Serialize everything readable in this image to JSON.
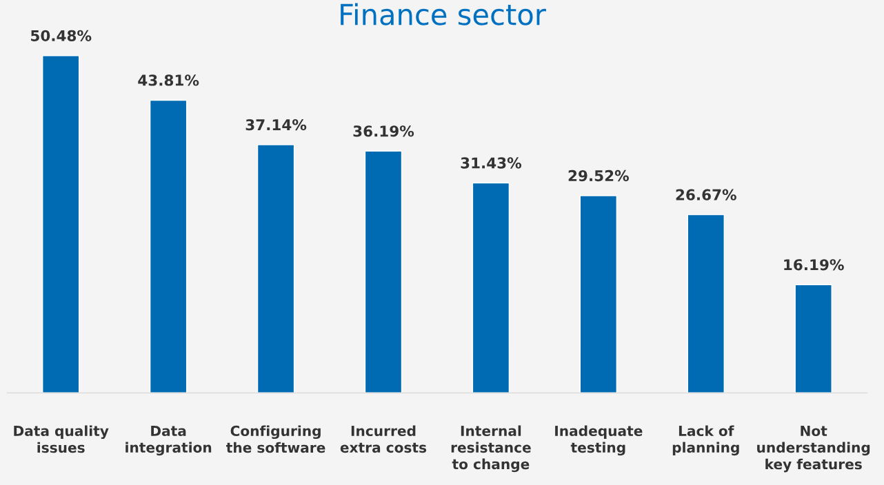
{
  "chart_data": {
    "type": "bar",
    "title": "Finance sector",
    "categories": [
      "Data quality\nissues",
      "Data\nintegration",
      "Configuring\nthe software",
      "Incurred\nextra costs",
      "Internal\nresistance\nto change",
      "Inadequate\ntesting",
      "Lack of\nplanning",
      "Not\nunderstanding\nkey features"
    ],
    "values": [
      50.48,
      43.81,
      37.14,
      36.19,
      31.43,
      29.52,
      26.67,
      16.19
    ],
    "value_labels": [
      "50.48%",
      "43.81%",
      "37.14%",
      "36.19%",
      "31.43%",
      "29.52%",
      "26.67%",
      "16.19%"
    ],
    "color": "#006bb3",
    "grid": false,
    "legend": false
  }
}
